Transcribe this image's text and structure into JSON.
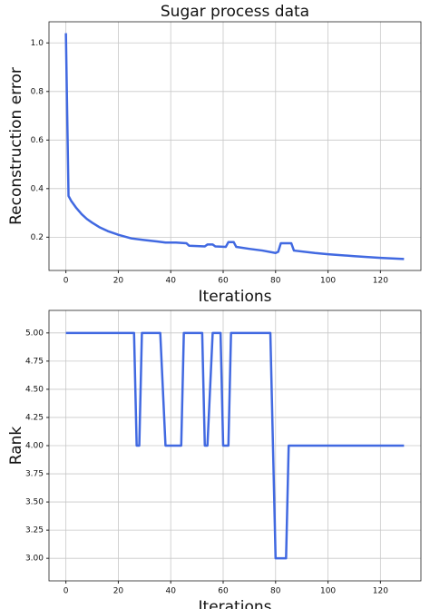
{
  "chart_data": [
    {
      "type": "line",
      "title": "Sugar process data",
      "x_label": "Iterations",
      "y_label": "Reconstruction error",
      "x": [
        0,
        1,
        2,
        4,
        6,
        8,
        10,
        13,
        16,
        20,
        25,
        30,
        35,
        38,
        42,
        46,
        47,
        53,
        54,
        56,
        57,
        61,
        62,
        64,
        65,
        70,
        75,
        80,
        81,
        82,
        86,
        87,
        95,
        100,
        110,
        120,
        129
      ],
      "series": [
        {
          "color": "#4169e1",
          "values": [
            1.04,
            0.37,
            0.35,
            0.32,
            0.295,
            0.275,
            0.26,
            0.24,
            0.225,
            0.21,
            0.195,
            0.188,
            0.182,
            0.178,
            0.178,
            0.175,
            0.165,
            0.162,
            0.17,
            0.17,
            0.162,
            0.16,
            0.18,
            0.18,
            0.16,
            0.152,
            0.145,
            0.135,
            0.14,
            0.175,
            0.175,
            0.145,
            0.135,
            0.13,
            0.122,
            0.115,
            0.11
          ]
        }
      ],
      "xlim": [
        -6.45,
        135.45
      ],
      "xticks": [
        0,
        20,
        40,
        60,
        80,
        100,
        120
      ],
      "ylim": [
        0.063,
        1.087
      ],
      "yticks": [
        0.2,
        0.4,
        0.6,
        0.8,
        {
          "value": 1,
          "label": "1.0"
        }
      ],
      "grid": true
    },
    {
      "type": "line",
      "x_label": "Iterations",
      "y_label": "Rank",
      "x": [
        0,
        26,
        27,
        28,
        29,
        36,
        38,
        44,
        45,
        52,
        53,
        54,
        56,
        59,
        60,
        62,
        63,
        78,
        79,
        80,
        84,
        85,
        129
      ],
      "series": [
        {
          "color": "#4169e1",
          "values": [
            5,
            5,
            4,
            4,
            5,
            5,
            4,
            4,
            5,
            5,
            4,
            4,
            5,
            5,
            4,
            4,
            5,
            5,
            4,
            3,
            3,
            4,
            4
          ]
        }
      ],
      "xlim": [
        -6.45,
        135.45
      ],
      "xticks": [
        0,
        20,
        40,
        60,
        80,
        100,
        120
      ],
      "ylim": [
        2.8,
        5.2
      ],
      "yticks": [
        {
          "value": 3,
          "label": "3.00"
        },
        {
          "value": 3.25,
          "label": "3.25"
        },
        {
          "value": 3.5,
          "label": "3.50"
        },
        {
          "value": 3.75,
          "label": "3.75"
        },
        {
          "value": 4,
          "label": "4.00"
        },
        {
          "value": 4.25,
          "label": "4.25"
        },
        {
          "value": 4.5,
          "label": "4.50"
        },
        {
          "value": 4.75,
          "label": "4.75"
        },
        {
          "value": 5,
          "label": "5.00"
        }
      ],
      "grid": true
    }
  ]
}
